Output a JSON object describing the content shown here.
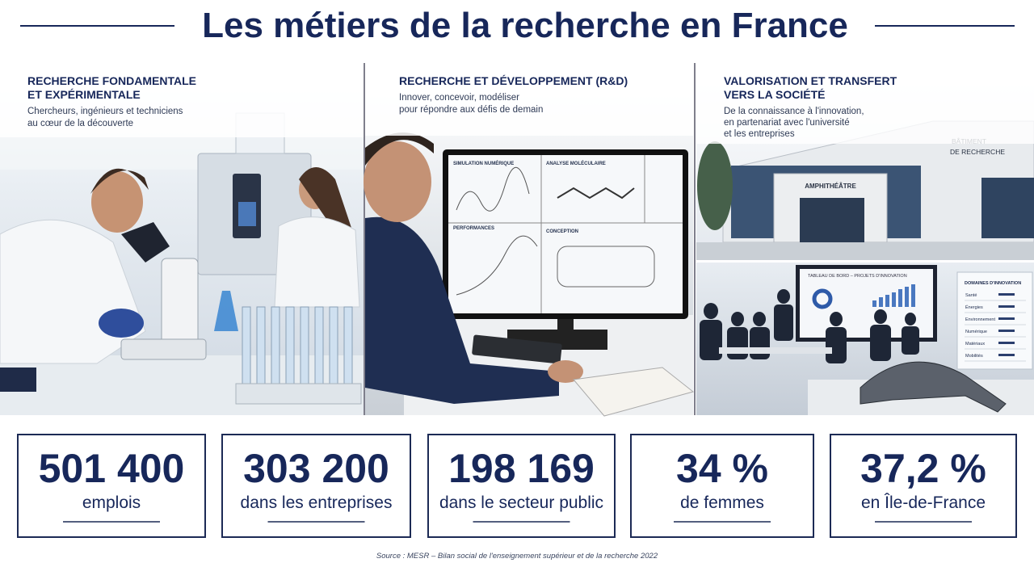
{
  "title": "Les métiers de la recherche en France",
  "panels": [
    {
      "heading": [
        "RECHERCHE FONDAMENTALE",
        "ET EXPÉRIMENTALE"
      ],
      "subtitle": [
        "Chercheurs, ingénieurs et techniciens",
        "au cœur de la découverte"
      ]
    },
    {
      "heading": [
        "RECHERCHE ET DÉVELOPPEMENT (R&D)"
      ],
      "subtitle": [
        "Innover, concevoir, modéliser",
        "pour répondre aux défis de demain"
      ],
      "screen_labels": [
        "SIMULATION NUMÉRIQUE",
        "ANALYSE MOLÉCULAIRE",
        "PERFORMANCES",
        "CONCEPTION"
      ]
    },
    {
      "heading": [
        "VALORISATION ET TRANSFERT",
        "VERS LA SOCIÉTÉ"
      ],
      "subtitle": [
        "De la connaissance à l'innovation,",
        "en partenariat avec l'université",
        "et les entreprises"
      ],
      "building_sign": [
        "BÂTIMENT",
        "DE RECHERCHE"
      ],
      "entrance_sign": "AMPHITHÉÂTRE",
      "dashboard_title": "TABLEAU DE BORD – PROJETS D'INNOVATION",
      "domains_title": "DOMAINES D'INNOVATION",
      "domains": [
        "Santé",
        "Énergies",
        "Environnement",
        "Numérique",
        "Matériaux",
        "Mobilités"
      ]
    }
  ],
  "stats": [
    {
      "value": "501 400",
      "label": "emplois"
    },
    {
      "value": "303 200",
      "label": "dans les entreprises"
    },
    {
      "value": "198 169",
      "label": "dans le secteur public"
    },
    {
      "value": "34 %",
      "label": "de femmes"
    },
    {
      "value": "37,2 %",
      "label": "en Île-de-France"
    }
  ],
  "source": "Source : MESR – Bilan social de l'enseignement supérieur et de la recherche 2022"
}
